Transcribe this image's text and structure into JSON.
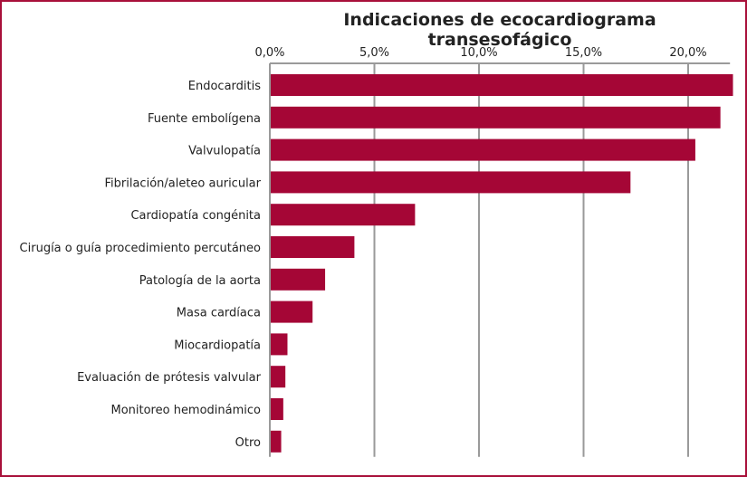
{
  "chart_data": {
    "type": "bar",
    "orientation": "horizontal",
    "title": "Indicaciones de ecocardiograma transesofágico",
    "xlabel": "",
    "ylabel": "",
    "xlim": [
      0,
      22
    ],
    "x_ticks": [
      0,
      5,
      10,
      15,
      20
    ],
    "x_tick_labels": [
      "0,0%",
      "5,0%",
      "10,0%",
      "15,0%",
      "20,0%"
    ],
    "x_axis_position": "top",
    "grid": true,
    "categories": [
      "Endocarditis",
      "Fuente embolígena",
      "Valvulopatía",
      "Fibrilación/aleteo auricular",
      "Cardiopatía congénita",
      "Cirugía o guía procedimiento percutáneo",
      "Patología de la aorta",
      "Masa cardíaca",
      "Miocardiopatía",
      "Evaluación de prótesis valvular",
      "Monitoreo hemodinámico",
      "Otro"
    ],
    "values": [
      22.1,
      21.5,
      20.3,
      17.2,
      6.9,
      4.0,
      2.6,
      2.0,
      0.8,
      0.7,
      0.6,
      0.5
    ],
    "bar_color": "#a50636",
    "frame_color": "#a8103a"
  }
}
